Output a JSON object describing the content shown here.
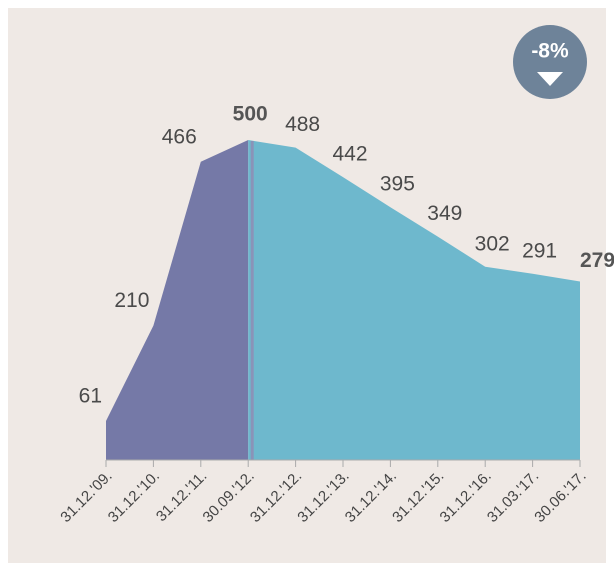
{
  "chart_data": {
    "type": "area",
    "categories": [
      "31.12.'09.",
      "31.12.'10.",
      "31.12.'11.",
      "30.09.'12.",
      "31.12.'12.",
      "31.12.'13.",
      "31.12.'14.",
      "31.12.'15.",
      "31.12.'16.",
      "31.03.'17.",
      "30.06.'17."
    ],
    "series": [
      {
        "color": "#7579a7",
        "values": [
          61,
          210,
          466,
          500,
          null,
          null,
          null,
          null,
          null,
          null,
          null
        ]
      },
      {
        "color": "#6eb8cd",
        "values": [
          null,
          null,
          null,
          500,
          488,
          442,
          395,
          349,
          302,
          291,
          279
        ]
      }
    ],
    "ylim": [
      0,
      500
    ],
    "annotation": "-8%"
  }
}
